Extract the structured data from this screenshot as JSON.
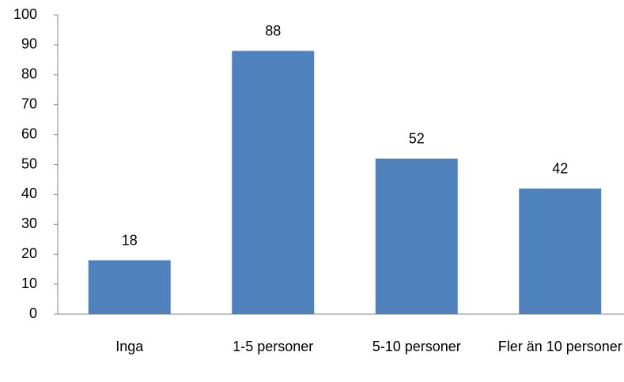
{
  "chart_data": {
    "type": "bar",
    "categories": [
      "Inga",
      "1-5 personer",
      "5-10 personer",
      "Fler än 10 personer"
    ],
    "values": [
      18,
      88,
      52,
      42
    ],
    "color": "#4f81bd",
    "ylim": [
      0,
      100
    ],
    "yticks": [
      0,
      10,
      20,
      30,
      40,
      50,
      60,
      70,
      80,
      90,
      100
    ],
    "grid": false,
    "data_labels": true
  }
}
